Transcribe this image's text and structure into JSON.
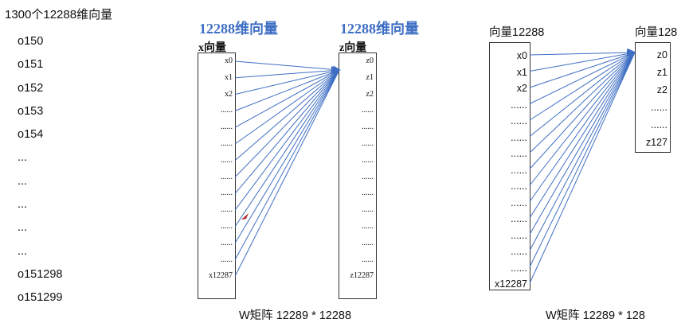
{
  "left": {
    "title": "1300个12288维向量",
    "vectors": [
      "o150",
      "o151",
      "o152",
      "o153",
      "o154",
      "...",
      "...",
      "...",
      "...",
      "...",
      "o151298",
      "o151299"
    ]
  },
  "middle": {
    "input_head": "12288维向量",
    "output_head": "12288维向量",
    "x_label": "x向量",
    "z_label": "z向量",
    "x_cells": [
      "x0",
      "x1",
      "x2",
      "......",
      "......",
      "......",
      "......",
      "......",
      "......",
      "......",
      "......",
      "......",
      "......",
      "x12287"
    ],
    "z_cells": [
      "z0",
      "z1",
      "z2",
      "......",
      "......",
      "......",
      "......",
      "......",
      "......",
      "......",
      "......",
      "......",
      "......",
      "z12287"
    ],
    "caption": "W矩阵 12289 * 12288"
  },
  "right": {
    "input_head": "向量12288",
    "output_head": "向量128",
    "x_cells": [
      "x0",
      "x1",
      "x2",
      "......",
      "......",
      "......",
      "......",
      "......",
      "......",
      "......",
      "......",
      "......",
      "......",
      "......",
      "x12287"
    ],
    "z_cells": [
      "z0",
      "z1",
      "z2",
      "......",
      "......",
      "z127"
    ],
    "caption": "W矩阵 12289 * 128"
  },
  "colors": {
    "line": "#3f6fc4",
    "heading": "#3f6fc4",
    "cursor": "#b3262a"
  }
}
